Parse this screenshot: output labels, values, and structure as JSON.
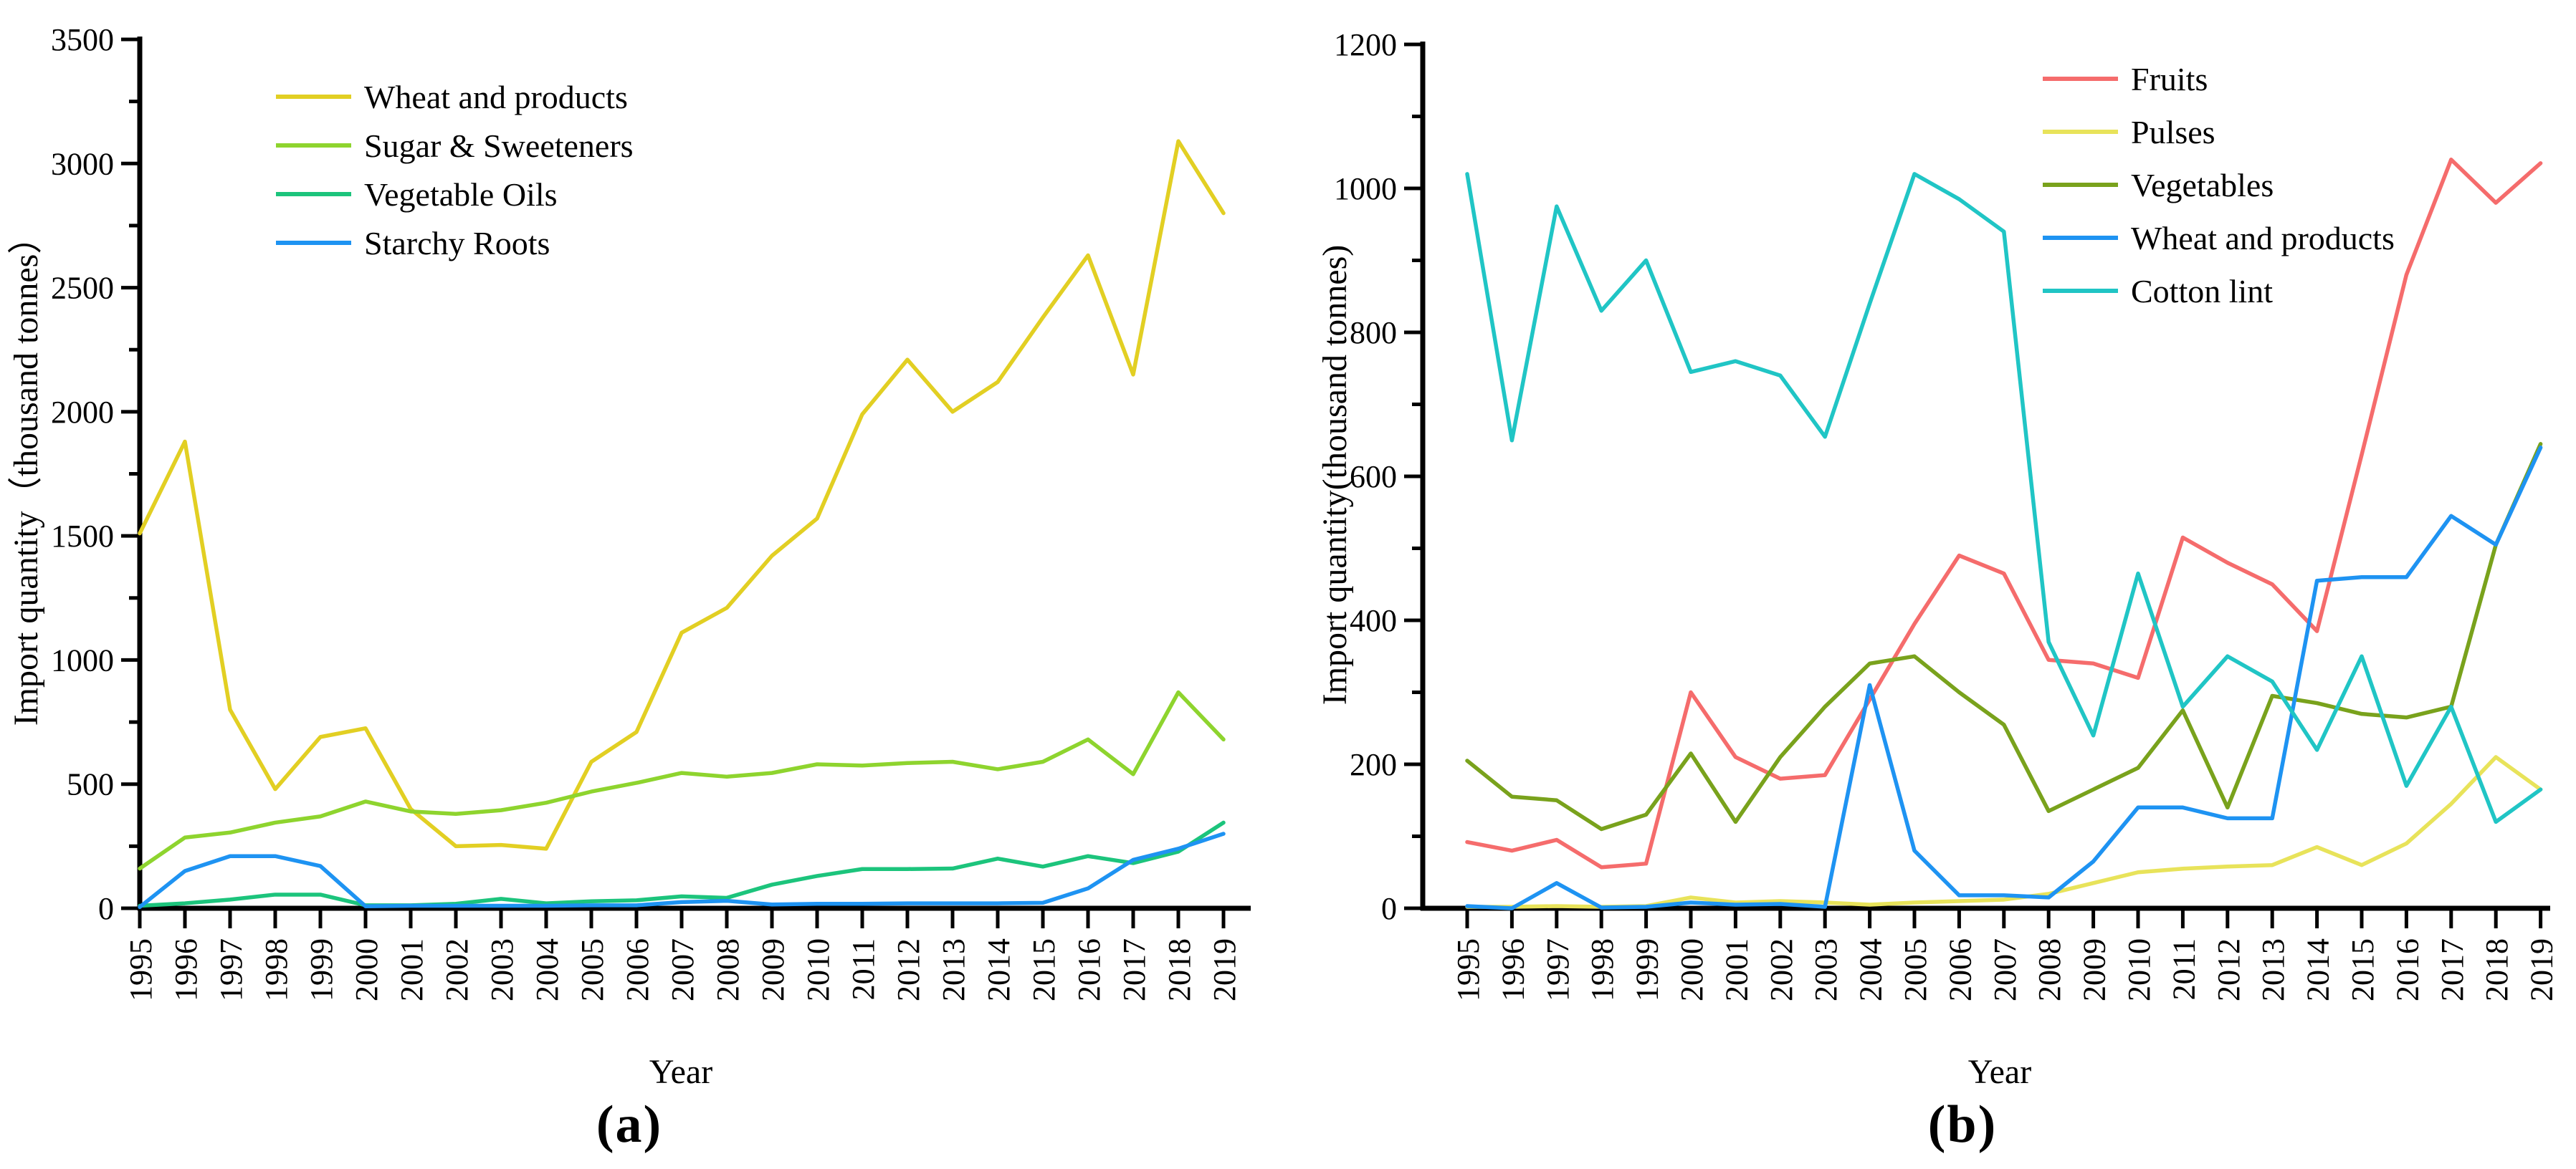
{
  "figure": {
    "background": "#ffffff",
    "text_color": "#000000",
    "axis_color": "#000000",
    "caption_a": "(a)",
    "caption_b": "(b)"
  },
  "chart_data": [
    {
      "type": "line",
      "panel": "a",
      "title": "",
      "xlabel": "Year",
      "ylabel": "Import quantity（thousand tonnes）",
      "ylim": [
        0,
        3500
      ],
      "ytick_step": 500,
      "yminor_step": 250,
      "grid": false,
      "legend_position": "top-left-inside",
      "x": [
        "1995",
        "1996",
        "1997",
        "1998",
        "1999",
        "2000",
        "2001",
        "2002",
        "2003",
        "2004",
        "2005",
        "2006",
        "2007",
        "2008",
        "2009",
        "2010",
        "2011",
        "2012",
        "2013",
        "2014",
        "2015",
        "2016",
        "2017",
        "2018",
        "2019"
      ],
      "series": [
        {
          "name": "Wheat and products",
          "color": "#e2cf23",
          "values": [
            1510,
            1880,
            800,
            480,
            690,
            725,
            400,
            250,
            255,
            240,
            590,
            710,
            1110,
            1210,
            1420,
            1570,
            1990,
            2210,
            2000,
            2120,
            2380,
            2630,
            2150,
            3090,
            2800
          ]
        },
        {
          "name": "Sugar & Sweeteners",
          "color": "#8ed42e",
          "values": [
            160,
            285,
            305,
            345,
            370,
            430,
            390,
            380,
            395,
            425,
            470,
            505,
            545,
            530,
            545,
            580,
            575,
            585,
            590,
            560,
            590,
            680,
            540,
            870,
            680
          ]
        },
        {
          "name": "Vegetable Oils",
          "color": "#1cc47c",
          "values": [
            10,
            20,
            35,
            55,
            55,
            12,
            12,
            18,
            38,
            20,
            28,
            32,
            48,
            42,
            95,
            130,
            158,
            158,
            160,
            200,
            168,
            210,
            182,
            228,
            345
          ]
        },
        {
          "name": "Starchy Roots",
          "color": "#1e93f2",
          "values": [
            5,
            150,
            210,
            210,
            170,
            8,
            10,
            10,
            10,
            10,
            12,
            12,
            25,
            30,
            15,
            18,
            18,
            20,
            20,
            20,
            22,
            80,
            195,
            240,
            300
          ]
        }
      ]
    },
    {
      "type": "line",
      "panel": "b",
      "title": "",
      "xlabel": "Year",
      "ylabel": "Import quantity(thousand tonnes)",
      "ylim": [
        0,
        1200
      ],
      "ytick_step": 200,
      "yminor_step": 100,
      "grid": false,
      "legend_position": "top-right-inside",
      "x": [
        "1995",
        "1996",
        "1997",
        "1998",
        "1999",
        "2000",
        "2001",
        "2002",
        "2003",
        "2004",
        "2005",
        "2006",
        "2007",
        "2008",
        "2009",
        "2010",
        "2011",
        "2012",
        "2013",
        "2014",
        "2015",
        "2016",
        "2017",
        "2018",
        "2019"
      ],
      "series": [
        {
          "name": "Fruits",
          "color": "#f56c6c",
          "values": [
            92,
            80,
            95,
            57,
            62,
            300,
            210,
            180,
            185,
            290,
            395,
            490,
            465,
            345,
            340,
            320,
            515,
            480,
            450,
            385,
            630,
            880,
            1040,
            980,
            1035
          ]
        },
        {
          "name": "Pulses",
          "color": "#e8e35a",
          "values": [
            2,
            2,
            3,
            2,
            3,
            15,
            8,
            10,
            8,
            5,
            8,
            10,
            12,
            20,
            35,
            50,
            55,
            58,
            60,
            85,
            60,
            90,
            145,
            210,
            165
          ]
        },
        {
          "name": "Vegetables",
          "color": "#79a21c",
          "values": [
            205,
            155,
            150,
            110,
            130,
            215,
            120,
            210,
            280,
            340,
            350,
            300,
            255,
            135,
            165,
            195,
            275,
            140,
            295,
            285,
            270,
            265,
            280,
            505,
            645
          ]
        },
        {
          "name": "Wheat and products",
          "color": "#1e93f2",
          "values": [
            3,
            0,
            35,
            1,
            2,
            8,
            5,
            6,
            2,
            310,
            80,
            18,
            18,
            15,
            65,
            140,
            140,
            125,
            125,
            455,
            460,
            460,
            545,
            505,
            640
          ]
        },
        {
          "name": "Cotton lint",
          "color": "#20c5c5",
          "values": [
            1020,
            650,
            975,
            830,
            900,
            745,
            760,
            740,
            655,
            840,
            1020,
            985,
            940,
            370,
            240,
            465,
            280,
            350,
            315,
            220,
            350,
            170,
            280,
            120,
            165
          ]
        }
      ]
    }
  ]
}
